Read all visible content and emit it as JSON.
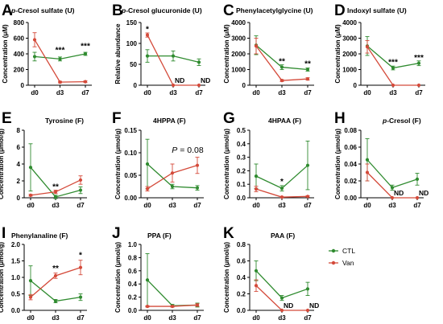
{
  "colors": {
    "CTL": "#2f8b2f",
    "Van": "#d44a3a"
  },
  "legend": {
    "items": [
      {
        "key": "CTL",
        "label": "CTL"
      },
      {
        "key": "Van",
        "label": "Van"
      }
    ]
  },
  "chart_data": [
    {
      "panel": "A",
      "type": "line",
      "title": "p-Cresol sulfate (U)",
      "title_parts": [
        {
          "t": "p",
          "i": true
        },
        {
          "t": "-Cresol sulfate (U)",
          "i": false
        }
      ],
      "ylabel": "Concentration (μM)",
      "ylim": [
        0,
        800
      ],
      "yticks": [
        "0",
        "200",
        "400",
        "600",
        "800"
      ],
      "categories": [
        "d0",
        "d3",
        "d7"
      ],
      "series": [
        {
          "key": "CTL",
          "values": [
            365,
            335,
            400
          ],
          "err": [
            55,
            25,
            20
          ]
        },
        {
          "key": "Van",
          "values": [
            580,
            40,
            45
          ],
          "err": [
            90,
            10,
            10
          ]
        }
      ],
      "annotations": [
        {
          "text": "***",
          "at": 1,
          "y": 415
        },
        {
          "text": "***",
          "at": 2,
          "y": 465
        }
      ],
      "nd": []
    },
    {
      "panel": "B",
      "type": "line",
      "title": "p-Cresol glucuronide (U)",
      "title_parts": [
        {
          "t": "p",
          "i": true
        },
        {
          "t": "-Cresol glucuronide (U)",
          "i": false
        }
      ],
      "ylabel": "Relative abundance",
      "ylim": [
        0,
        150
      ],
      "yticks": [
        "0",
        "50",
        "100",
        "150"
      ],
      "categories": [
        "d0",
        "d3",
        "d7"
      ],
      "series": [
        {
          "key": "CTL",
          "values": [
            70,
            70,
            55
          ],
          "err": [
            15,
            12,
            8
          ]
        },
        {
          "key": "Van",
          "values": [
            120,
            0,
            0
          ],
          "err": [
            5,
            0,
            0
          ]
        }
      ],
      "annotations": [
        {
          "text": "*",
          "at": 0,
          "y": 128
        }
      ],
      "nd": [
        {
          "text": "ND",
          "at": 1
        },
        {
          "text": "ND",
          "at": 2
        }
      ]
    },
    {
      "panel": "C",
      "type": "line",
      "title": "Phenylacetylglycine (U)",
      "title_parts": [
        {
          "t": "Phenylacetylglycine (U)",
          "i": false
        }
      ],
      "ylabel": "Concentration (μM)",
      "ylim": [
        0,
        4000
      ],
      "yticks": [
        "0",
        "1000",
        "2000",
        "3000",
        "4000"
      ],
      "categories": [
        "d0",
        "d3",
        "d7"
      ],
      "series": [
        {
          "key": "CTL",
          "values": [
            2550,
            1150,
            1000
          ],
          "err": [
            600,
            150,
            100
          ]
        },
        {
          "key": "Van",
          "values": [
            2500,
            300,
            400
          ],
          "err": [
            500,
            60,
            80
          ]
        }
      ],
      "annotations": [
        {
          "text": "**",
          "at": 1,
          "y": 1350
        },
        {
          "text": "**",
          "at": 2,
          "y": 1200
        }
      ],
      "nd": []
    },
    {
      "panel": "D",
      "type": "line",
      "title": "Indoxyl sulfate (U)",
      "title_parts": [
        {
          "t": "Indoxyl sulfate (U)",
          "i": false
        }
      ],
      "ylabel": "Concentration (μM)",
      "ylim": [
        0,
        4000
      ],
      "yticks": [
        "0",
        "1000",
        "2000",
        "3000",
        "4000"
      ],
      "categories": [
        "d0",
        "d3",
        "d7"
      ],
      "series": [
        {
          "key": "CTL",
          "values": [
            2500,
            1100,
            1400
          ],
          "err": [
            600,
            120,
            150
          ]
        },
        {
          "key": "Van",
          "values": [
            2450,
            0,
            0
          ],
          "err": [
            400,
            0,
            0
          ]
        }
      ],
      "annotations": [
        {
          "text": "***",
          "at": 1,
          "y": 1300
        },
        {
          "text": "***",
          "at": 2,
          "y": 1600
        }
      ],
      "nd": []
    },
    {
      "panel": "E",
      "type": "line",
      "title": "Tyrosine (F)",
      "title_parts": [
        {
          "t": "Tyrosine (F)",
          "i": false
        }
      ],
      "ylabel": "Concentration (μmol/g)",
      "ylim": [
        0,
        8
      ],
      "yticks": [
        "0",
        "2",
        "4",
        "6",
        "8"
      ],
      "categories": [
        "d0",
        "d3",
        "d7"
      ],
      "series": [
        {
          "key": "CTL",
          "values": [
            3.6,
            0.1,
            0.9
          ],
          "err": [
            2.8,
            0.2,
            0.4
          ]
        },
        {
          "key": "Van",
          "values": [
            0.3,
            0.7,
            2.1
          ],
          "err": [
            0.1,
            0.2,
            0.5
          ]
        }
      ],
      "annotations": [
        {
          "text": "**",
          "at": 1,
          "y": 1.0
        }
      ],
      "nd": []
    },
    {
      "panel": "F",
      "type": "line",
      "title": "4HPPA (F)",
      "title_parts": [
        {
          "t": "4HPPA (F)",
          "i": false
        }
      ],
      "ylabel": "Concentration (μmol/g)",
      "ylim": [
        0,
        0.15
      ],
      "yticks": [
        "0.00",
        "0.05",
        "0.10",
        "0.15"
      ],
      "categories": [
        "d0",
        "d3",
        "d7"
      ],
      "series": [
        {
          "key": "CTL",
          "values": [
            0.075,
            0.025,
            0.022
          ],
          "err": [
            0.055,
            0.005,
            0.005
          ]
        },
        {
          "key": "Van",
          "values": [
            0.02,
            0.055,
            0.072
          ],
          "err": [
            0.005,
            0.02,
            0.018
          ]
        }
      ],
      "annotations": [],
      "pvalue": {
        "italic": "P",
        "rest": " = 0.08",
        "at": 2,
        "y": 0.1
      },
      "nd": []
    },
    {
      "panel": "G",
      "type": "line",
      "title": "4HPAA (F)",
      "title_parts": [
        {
          "t": "4HPAA (F)",
          "i": false
        }
      ],
      "ylabel": "Concentration (μmol/g)",
      "ylim": [
        0,
        0.5
      ],
      "yticks": [
        "0.0",
        "0.1",
        "0.2",
        "0.3",
        "0.4",
        "0.5"
      ],
      "categories": [
        "d0",
        "d3",
        "d7"
      ],
      "series": [
        {
          "key": "CTL",
          "values": [
            0.16,
            0.07,
            0.24
          ],
          "err": [
            0.09,
            0.02,
            0.18
          ]
        },
        {
          "key": "Van",
          "values": [
            0.065,
            0.005,
            0.01
          ],
          "err": [
            0.02,
            0.003,
            0.005
          ]
        }
      ],
      "annotations": [
        {
          "text": "*",
          "at": 1,
          "y": 0.1
        }
      ],
      "nd": []
    },
    {
      "panel": "H",
      "type": "line",
      "title": "p-Cresol (F)",
      "title_parts": [
        {
          "t": "p",
          "i": true
        },
        {
          "t": "-Cresol (F)",
          "i": false
        }
      ],
      "ylabel": "Concentration (μmol/g)",
      "ylim": [
        0,
        0.08
      ],
      "yticks": [
        "0.00",
        "0.02",
        "0.04",
        "0.06",
        "0.08"
      ],
      "categories": [
        "d0",
        "d3",
        "d7"
      ],
      "series": [
        {
          "key": "CTL",
          "values": [
            0.045,
            0.012,
            0.022
          ],
          "err": [
            0.025,
            0.003,
            0.007
          ]
        },
        {
          "key": "Van",
          "values": [
            0.03,
            0,
            0
          ],
          "err": [
            0.01,
            0,
            0
          ]
        }
      ],
      "annotations": [],
      "nd": [
        {
          "text": "ND",
          "at": 1
        },
        {
          "text": "ND",
          "at": 2
        }
      ]
    },
    {
      "panel": "I",
      "type": "line",
      "title": "Phenylanaline (F)",
      "title_parts": [
        {
          "t": "Phenylanaline (F)",
          "i": false
        }
      ],
      "ylabel": "Concentration (μmol/g)",
      "ylim": [
        0,
        2.0
      ],
      "yticks": [
        "0.0",
        "0.5",
        "1.0",
        "1.5",
        "2.0"
      ],
      "categories": [
        "d0",
        "d3",
        "d7"
      ],
      "series": [
        {
          "key": "CTL",
          "values": [
            0.9,
            0.28,
            0.4
          ],
          "err": [
            0.45,
            0.05,
            0.1
          ]
        },
        {
          "key": "Van",
          "values": [
            0.4,
            1.05,
            1.3
          ],
          "err": [
            0.08,
            0.08,
            0.22
          ]
        }
      ],
      "annotations": [
        {
          "text": "**",
          "at": 1,
          "y": 1.2
        },
        {
          "text": "*",
          "at": 2,
          "y": 1.6
        }
      ],
      "nd": []
    },
    {
      "panel": "J",
      "type": "line",
      "title": "PPA (F)",
      "title_parts": [
        {
          "t": "PPA (F)",
          "i": false
        }
      ],
      "ylabel": "Concentration (μmol/g)",
      "ylim": [
        0,
        1.0
      ],
      "yticks": [
        "0.0",
        "0.2",
        "0.4",
        "0.6",
        "0.8",
        "1.0"
      ],
      "categories": [
        "d0",
        "d3",
        "d7"
      ],
      "series": [
        {
          "key": "CTL",
          "values": [
            0.46,
            0.07,
            0.08
          ],
          "err": [
            0.4,
            0.02,
            0.03
          ]
        },
        {
          "key": "Van",
          "values": [
            0.06,
            0.06,
            0.08
          ],
          "err": [
            0.01,
            0.01,
            0.02
          ]
        }
      ],
      "annotations": [],
      "nd": []
    },
    {
      "panel": "K",
      "type": "line",
      "title": "PAA (F)",
      "title_parts": [
        {
          "t": "PAA (F)",
          "i": false
        }
      ],
      "ylabel": "Concentration (μmol/g)",
      "ylim": [
        0,
        0.8
      ],
      "yticks": [
        "0.0",
        "0.2",
        "0.4",
        "0.6",
        "0.8"
      ],
      "categories": [
        "d0",
        "d3",
        "d7"
      ],
      "series": [
        {
          "key": "CTL",
          "values": [
            0.48,
            0.15,
            0.26
          ],
          "err": [
            0.12,
            0.03,
            0.08
          ]
        },
        {
          "key": "Van",
          "values": [
            0.3,
            0,
            0
          ],
          "err": [
            0.07,
            0,
            0
          ]
        }
      ],
      "annotations": [],
      "nd": [
        {
          "text": "ND",
          "at": 1
        },
        {
          "text": "ND",
          "at": 2
        }
      ]
    }
  ]
}
